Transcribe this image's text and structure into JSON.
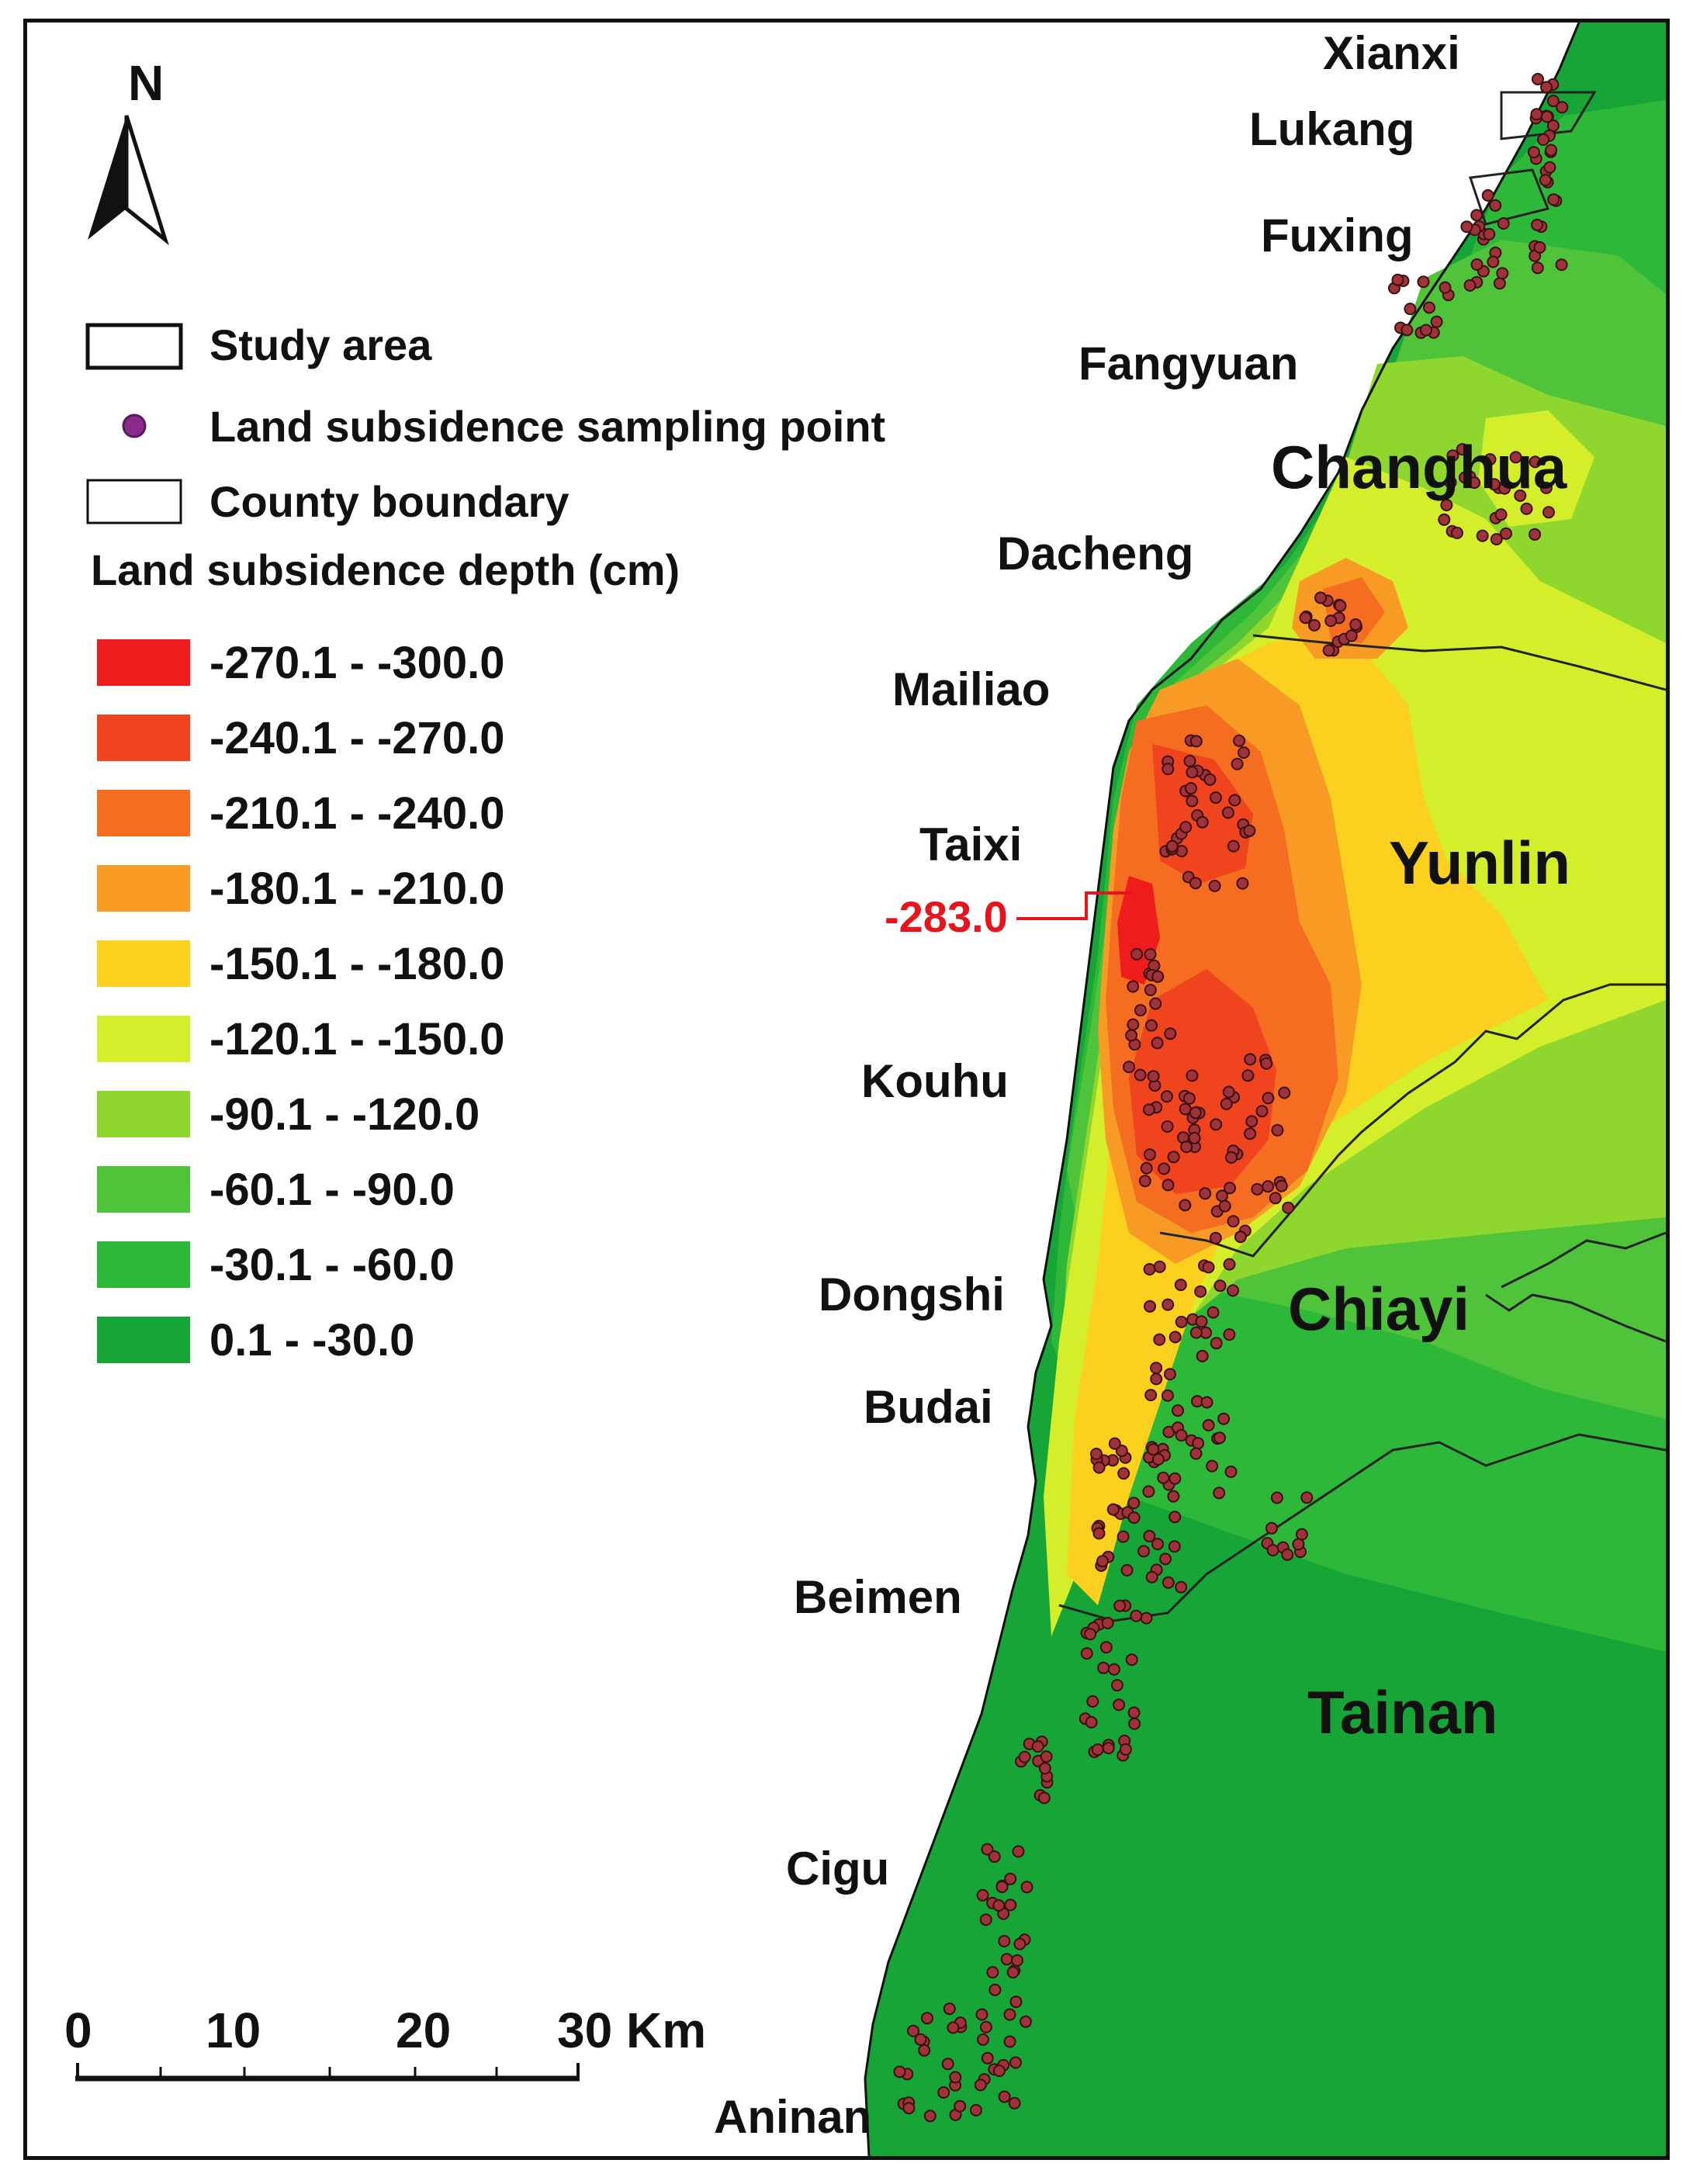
{
  "north_arrow": {
    "letter": "N"
  },
  "legend": {
    "study_area": "Study area",
    "sampling_point": "Land subsidence sampling point",
    "county_boundary": "County boundary",
    "depth_title": "Land subsidence depth (cm)",
    "classes": [
      {
        "label": "-270.1 - -300.0",
        "color": "#ee1c1c"
      },
      {
        "label": "-240.1 - -270.0",
        "color": "#f0441f"
      },
      {
        "label": "-210.1 - -240.0",
        "color": "#f46d21"
      },
      {
        "label": "-180.1 - -210.0",
        "color": "#f89b25"
      },
      {
        "label": "-150.1 - -180.0",
        "color": "#fbd01e"
      },
      {
        "label": "-120.1 - -150.0",
        "color": "#d4ee2b"
      },
      {
        "label": "-90.1 - -120.0",
        "color": "#8fd62e"
      },
      {
        "label": "-60.1 - -90.0",
        "color": "#4fc43a"
      },
      {
        "label": "-30.1 - -60.0",
        "color": "#2eb839"
      },
      {
        "label": "0.1 - -30.0",
        "color": "#17a537"
      }
    ]
  },
  "scale_bar": {
    "ticks": [
      "0",
      "10",
      "20",
      "30 Km"
    ]
  },
  "places": {
    "xianxi": "Xianxi",
    "lukang": "Lukang",
    "fuxing": "Fuxing",
    "fangyuan": "Fangyuan",
    "dacheng": "Dacheng",
    "mailiao": "Mailiao",
    "taixi": "Taixi",
    "kouhu": "Kouhu",
    "dongshi": "Dongshi",
    "budai": "Budai",
    "beimen": "Beimen",
    "cigu": "Cigu",
    "aninan": "Aninan"
  },
  "counties": {
    "changhua": "Changhua",
    "yunlin": "Yunlin",
    "chiayi": "Chiayi",
    "tainan": "Tainan"
  },
  "max_annotation": "-283.0"
}
